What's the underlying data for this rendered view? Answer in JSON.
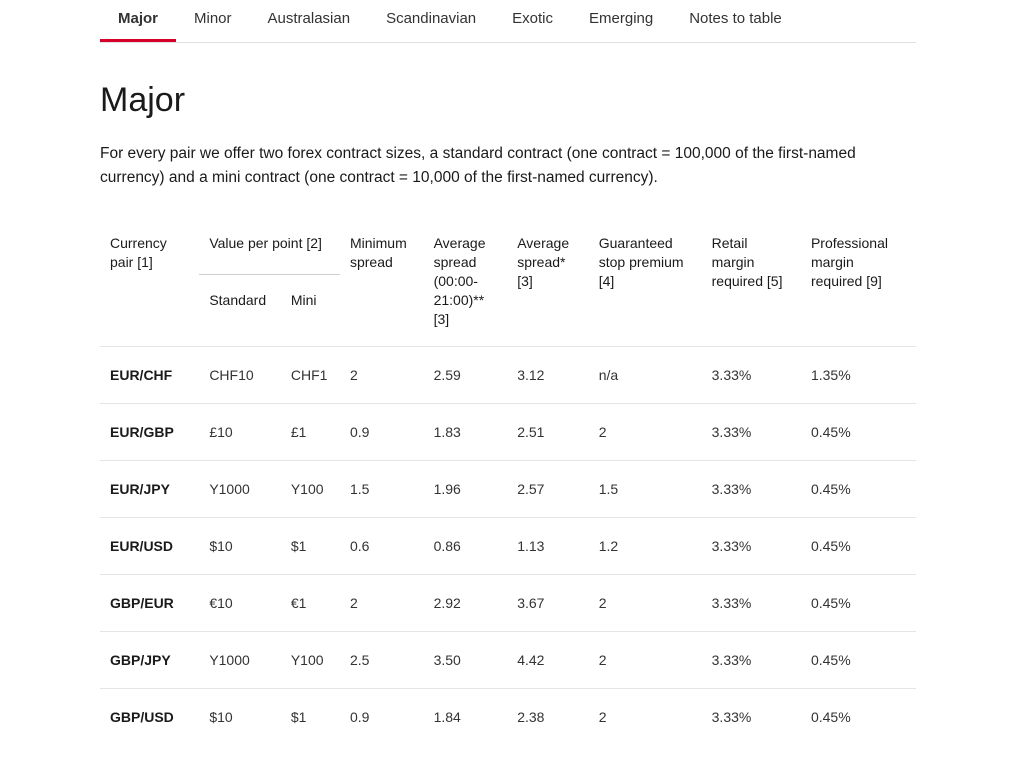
{
  "tabs": [
    {
      "label": "Major",
      "active": true
    },
    {
      "label": "Minor",
      "active": false
    },
    {
      "label": "Australasian",
      "active": false
    },
    {
      "label": "Scandinavian",
      "active": false
    },
    {
      "label": "Exotic",
      "active": false
    },
    {
      "label": "Emerging",
      "active": false
    },
    {
      "label": "Notes to table",
      "active": false
    }
  ],
  "title": "Major",
  "description": "For every pair we offer two forex contract sizes, a standard contract (one contract = 100,000 of the first-named currency) and a mini contract (one contract = 10,000 of the first-named currency).",
  "columns": {
    "pair": "Currency pair [1]",
    "value_per_point": "Value per point [2]",
    "standard": "Standard",
    "mini": "Mini",
    "min_spread": "Minimum spread",
    "avg_spread_window": "Average spread (00:00-21:00)** [3]",
    "avg_spread": "Average spread* [3]",
    "stop_premium": "Guaranteed stop premium [4]",
    "retail_margin": "Retail margin required [5]",
    "prof_margin": "Professional margin required [9]"
  },
  "rows": [
    {
      "pair": "EUR/CHF",
      "std": "CHF10",
      "mini": "CHF1",
      "min": "2",
      "avg1": "2.59",
      "avg2": "3.12",
      "stop": "n/a",
      "retail": "3.33%",
      "prof": "1.35%"
    },
    {
      "pair": "EUR/GBP",
      "std": "£10",
      "mini": "£1",
      "min": "0.9",
      "avg1": "1.83",
      "avg2": "2.51",
      "stop": "2",
      "retail": "3.33%",
      "prof": "0.45%"
    },
    {
      "pair": "EUR/JPY",
      "std": "Y1000",
      "mini": "Y100",
      "min": "1.5",
      "avg1": "1.96",
      "avg2": "2.57",
      "stop": "1.5",
      "retail": "3.33%",
      "prof": "0.45%"
    },
    {
      "pair": "EUR/USD",
      "std": "$10",
      "mini": "$1",
      "min": "0.6",
      "avg1": "0.86",
      "avg2": "1.13",
      "stop": "1.2",
      "retail": "3.33%",
      "prof": "0.45%"
    },
    {
      "pair": "GBP/EUR",
      "std": "€10",
      "mini": "€1",
      "min": "2",
      "avg1": "2.92",
      "avg2": "3.67",
      "stop": "2",
      "retail": "3.33%",
      "prof": "0.45%"
    },
    {
      "pair": "GBP/JPY",
      "std": "Y1000",
      "mini": "Y100",
      "min": "2.5",
      "avg1": "3.50",
      "avg2": "4.42",
      "stop": "2",
      "retail": "3.33%",
      "prof": "0.45%"
    },
    {
      "pair": "GBP/USD",
      "std": "$10",
      "mini": "$1",
      "min": "0.9",
      "avg1": "1.84",
      "avg2": "2.38",
      "stop": "2",
      "retail": "3.33%",
      "prof": "0.45%"
    }
  ],
  "style": {
    "active_tab_underline": "#d6002a",
    "tab_border": "#e0e0e0",
    "row_border": "#e5e5e5",
    "text_color": "#1a1a1a"
  }
}
